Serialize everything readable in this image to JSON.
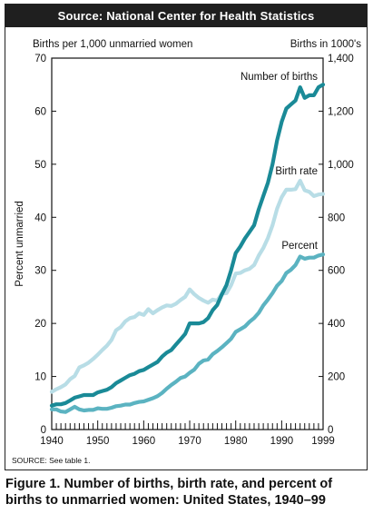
{
  "header": {
    "source": "Source: National Center for Health Statistics"
  },
  "caption": {
    "line1": "Figure 1. Number of births, birth rate, and percent of",
    "line2": "births to unmarried women: United States, 1940–99"
  },
  "chart_data": {
    "type": "line",
    "left_axis_label": "Births per 1,000 unmarried women",
    "right_axis_label": "Births in 1000's",
    "left_axis_vertical_label": "Percent unmarried",
    "xlim": [
      1940,
      1999
    ],
    "x_ticks": [
      "1940",
      "1950",
      "1960",
      "1970",
      "1980",
      "1990",
      "1999"
    ],
    "ylim_left": [
      0,
      70
    ],
    "y_ticks_left": [
      "0",
      "10",
      "20",
      "30",
      "40",
      "50",
      "60",
      "70"
    ],
    "ylim_right": [
      0,
      1400
    ],
    "y_ticks_right": [
      "0",
      "200",
      "400",
      "600",
      "800",
      "1,000",
      "1,200",
      "1,400"
    ],
    "source_note": "SOURCE: See table 1.",
    "series": [
      {
        "name": "Number of births",
        "axis": "right",
        "color": "#1a8a97",
        "x": [
          1940,
          1941,
          1942,
          1943,
          1944,
          1945,
          1946,
          1947,
          1948,
          1949,
          1950,
          1951,
          1952,
          1953,
          1954,
          1955,
          1956,
          1957,
          1958,
          1959,
          1960,
          1961,
          1962,
          1963,
          1964,
          1965,
          1966,
          1967,
          1968,
          1969,
          1970,
          1971,
          1972,
          1973,
          1974,
          1975,
          1976,
          1977,
          1978,
          1979,
          1980,
          1981,
          1982,
          1983,
          1984,
          1985,
          1986,
          1987,
          1988,
          1989,
          1990,
          1991,
          1992,
          1993,
          1994,
          1995,
          1996,
          1997,
          1998,
          1999
        ],
        "y": [
          90,
          95,
          95,
          100,
          110,
          120,
          125,
          130,
          130,
          130,
          140,
          145,
          150,
          160,
          175,
          185,
          195,
          205,
          210,
          220,
          225,
          235,
          245,
          255,
          275,
          290,
          300,
          320,
          340,
          360,
          400,
          400,
          400,
          405,
          420,
          450,
          470,
          510,
          545,
          600,
          665,
          690,
          720,
          745,
          770,
          830,
          880,
          930,
          1000,
          1090,
          1160,
          1210,
          1225,
          1240,
          1290,
          1250,
          1260,
          1260,
          1290,
          1300
        ]
      },
      {
        "name": "Birth rate",
        "axis": "left",
        "color": "#b8dde6",
        "x": [
          1940,
          1941,
          1942,
          1943,
          1944,
          1945,
          1946,
          1947,
          1948,
          1949,
          1950,
          1951,
          1952,
          1953,
          1954,
          1955,
          1956,
          1957,
          1958,
          1959,
          1960,
          1961,
          1962,
          1963,
          1964,
          1965,
          1966,
          1967,
          1968,
          1969,
          1970,
          1971,
          1972,
          1973,
          1974,
          1975,
          1976,
          1977,
          1978,
          1979,
          1980,
          1981,
          1982,
          1983,
          1984,
          1985,
          1986,
          1987,
          1988,
          1989,
          1990,
          1991,
          1992,
          1993,
          1994,
          1995,
          1996,
          1997,
          1998,
          1999
        ],
        "y": [
          7.1,
          7.6,
          8.0,
          8.5,
          9.5,
          10.1,
          11.7,
          12.1,
          12.6,
          13.3,
          14.1,
          15.0,
          15.8,
          16.9,
          18.7,
          19.3,
          20.4,
          21.0,
          21.2,
          21.9,
          21.6,
          22.7,
          21.9,
          22.5,
          23.0,
          23.4,
          23.3,
          23.7,
          24.4,
          25.0,
          26.4,
          25.5,
          24.8,
          24.3,
          23.9,
          24.5,
          24.3,
          25.6,
          25.7,
          27.2,
          29.4,
          29.5,
          30.0,
          30.3,
          31.0,
          32.8,
          34.2,
          36.1,
          38.5,
          41.6,
          43.8,
          45.2,
          45.2,
          45.3,
          46.9,
          45.1,
          44.8,
          44.0,
          44.3,
          44.4
        ]
      },
      {
        "name": "Percent",
        "axis": "left",
        "color": "#5bb3c1",
        "x": [
          1940,
          1941,
          1942,
          1943,
          1944,
          1945,
          1946,
          1947,
          1948,
          1949,
          1950,
          1951,
          1952,
          1953,
          1954,
          1955,
          1956,
          1957,
          1958,
          1959,
          1960,
          1961,
          1962,
          1963,
          1964,
          1965,
          1966,
          1967,
          1968,
          1969,
          1970,
          1971,
          1972,
          1973,
          1974,
          1975,
          1976,
          1977,
          1978,
          1979,
          1980,
          1981,
          1982,
          1983,
          1984,
          1985,
          1986,
          1987,
          1988,
          1989,
          1990,
          1991,
          1992,
          1993,
          1994,
          1995,
          1996,
          1997,
          1998,
          1999
        ],
        "y": [
          3.8,
          3.8,
          3.4,
          3.3,
          3.8,
          4.3,
          3.8,
          3.6,
          3.7,
          3.7,
          4.0,
          3.9,
          3.9,
          4.1,
          4.4,
          4.5,
          4.7,
          4.7,
          5.0,
          5.2,
          5.3,
          5.6,
          5.9,
          6.3,
          6.9,
          7.7,
          8.4,
          9.0,
          9.7,
          10.0,
          10.7,
          11.3,
          12.4,
          13.0,
          13.2,
          14.2,
          14.8,
          15.5,
          16.3,
          17.1,
          18.4,
          18.9,
          19.4,
          20.3,
          21.0,
          22.0,
          23.4,
          24.5,
          25.7,
          27.1,
          28.0,
          29.5,
          30.1,
          31.0,
          32.6,
          32.2,
          32.4,
          32.4,
          32.8,
          33.0
        ]
      }
    ]
  }
}
